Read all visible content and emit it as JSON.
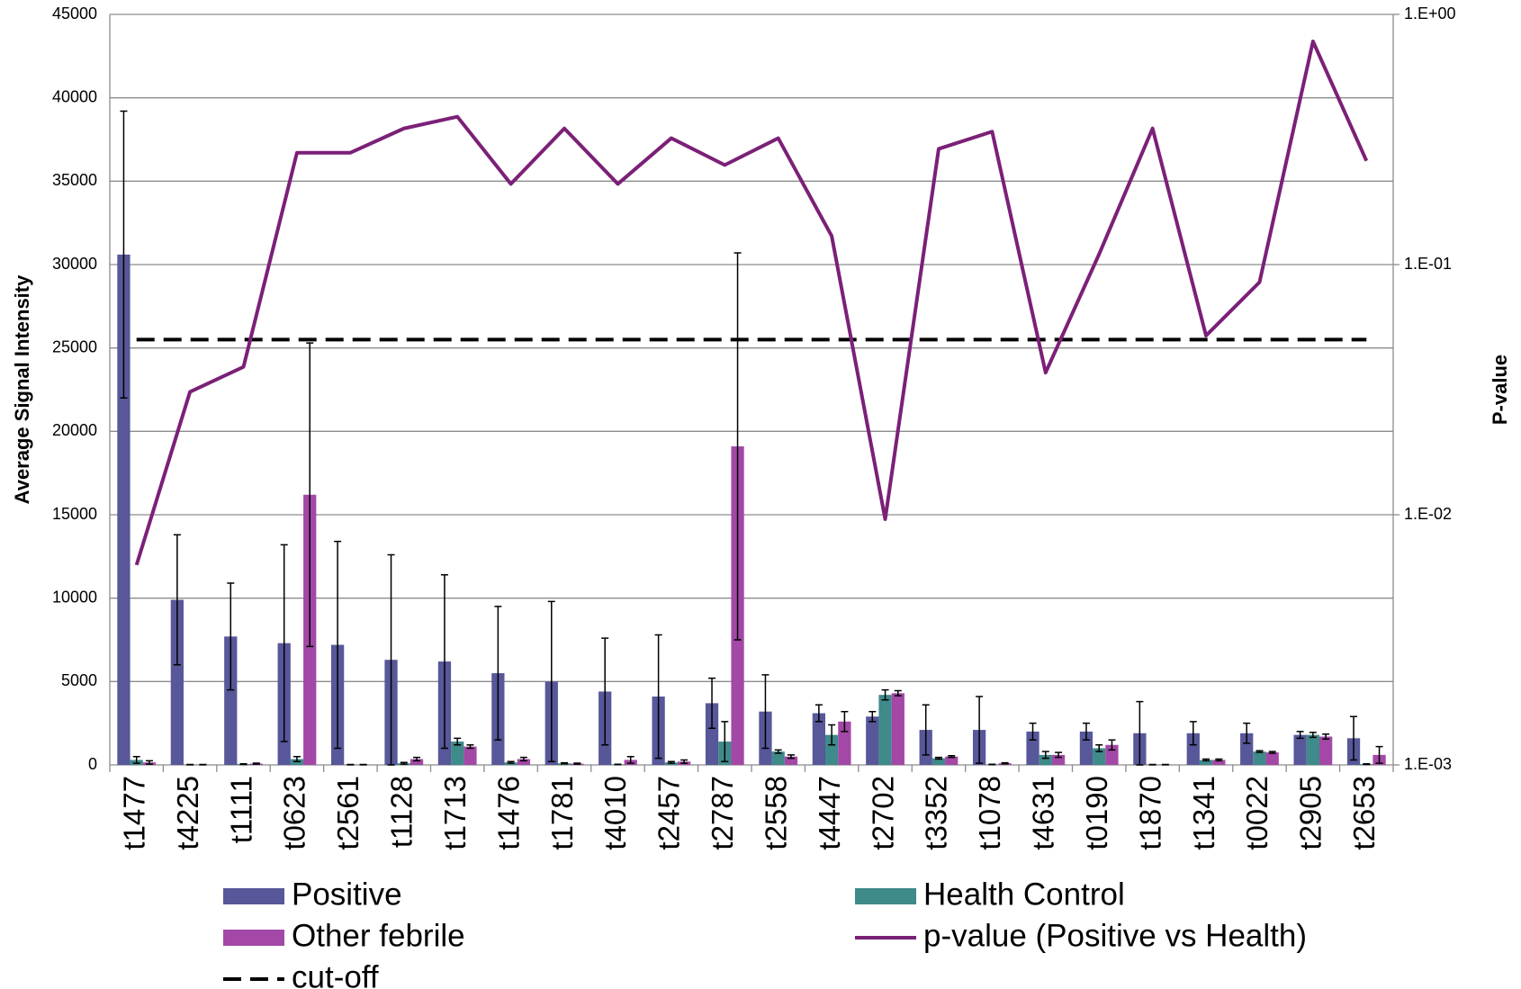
{
  "chart_data": {
    "type": "bar",
    "categories": [
      "t1477",
      "t4225",
      "t1111",
      "t0623",
      "t2561",
      "t1128",
      "t1713",
      "t1476",
      "t1781",
      "t4010",
      "t2457",
      "t2787",
      "t2558",
      "t4447",
      "t2702",
      "t3352",
      "t1078",
      "t4631",
      "t0190",
      "t1870",
      "t1341",
      "t0022",
      "t2905",
      "t2653"
    ],
    "y_label": "Average Signal Intensity",
    "y2_label": "P-value",
    "ylim": [
      0,
      45000
    ],
    "yticks": [
      0,
      5000,
      10000,
      15000,
      20000,
      25000,
      30000,
      35000,
      40000,
      45000
    ],
    "y2lim": [
      0.001,
      1
    ],
    "y2log": true,
    "y2ticks": [
      {
        "value": 0.001,
        "label": "1.E-03"
      },
      {
        "value": 0.01,
        "label": "1.E-02"
      },
      {
        "value": 0.1,
        "label": "1.E-01"
      },
      {
        "value": 1,
        "label": "1.E+00"
      }
    ],
    "grid": true,
    "series": [
      {
        "name": "Positive",
        "color": "#57579a",
        "type": "bar",
        "values": [
          30600,
          9900,
          7700,
          7300,
          7200,
          6300,
          6200,
          5500,
          5000,
          4400,
          4100,
          3700,
          3200,
          3100,
          2900,
          2100,
          2100,
          2000,
          2000,
          1900,
          1900,
          1900,
          1800,
          1600
        ],
        "errors": [
          8600,
          3900,
          3200,
          5900,
          6200,
          6300,
          5200,
          4000,
          4800,
          3200,
          3700,
          1500,
          2200,
          500,
          300,
          1500,
          2000,
          500,
          500,
          1900,
          700,
          600,
          200,
          1300
        ]
      },
      {
        "name": "Health Control",
        "color": "#3f8a8a",
        "type": "bar",
        "values": [
          300,
          20,
          50,
          350,
          20,
          100,
          1400,
          150,
          100,
          30,
          150,
          1400,
          800,
          1800,
          4200,
          400,
          30,
          600,
          1000,
          20,
          300,
          800,
          1800,
          50
        ],
        "errors": [
          200,
          10,
          20,
          150,
          10,
          50,
          200,
          50,
          30,
          10,
          50,
          1200,
          100,
          600,
          300,
          50,
          10,
          200,
          200,
          10,
          50,
          50,
          150,
          20
        ]
      },
      {
        "name": "Other febrile",
        "color": "#a348a6",
        "type": "bar",
        "values": [
          150,
          20,
          80,
          16200,
          20,
          350,
          1100,
          350,
          80,
          300,
          200,
          19100,
          500,
          2600,
          4300,
          500,
          100,
          600,
          1200,
          20,
          300,
          750,
          1700,
          600
        ],
        "errors": [
          100,
          10,
          30,
          9100,
          10,
          100,
          100,
          100,
          30,
          200,
          100,
          11600,
          100,
          600,
          150,
          50,
          30,
          150,
          300,
          10,
          50,
          50,
          150,
          500
        ]
      },
      {
        "name": "p-value (Positive vs Health)",
        "color": "#7b2077",
        "type": "line",
        "axis": "y2",
        "values": [
          0.0063,
          0.031,
          0.039,
          0.28,
          0.28,
          0.35,
          0.39,
          0.21,
          0.35,
          0.21,
          0.32,
          0.25,
          0.32,
          0.13,
          0.0096,
          0.29,
          0.34,
          0.037,
          0.11,
          0.35,
          0.052,
          0.085,
          0.78,
          0.26
        ]
      }
    ],
    "reference_lines": [
      {
        "name": "cut-off",
        "value": 25500,
        "color": "#000000",
        "style": "dashed"
      }
    ]
  }
}
